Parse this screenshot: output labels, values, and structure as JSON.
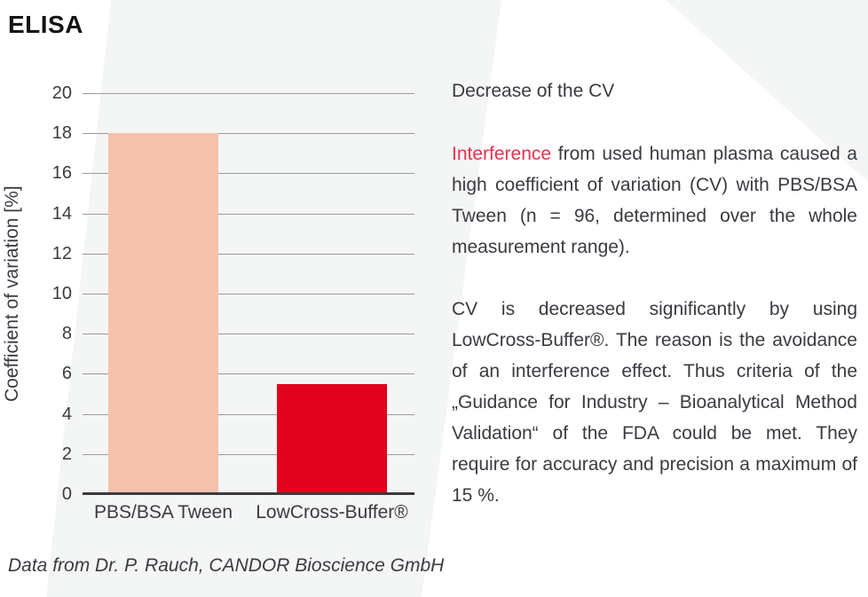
{
  "title": "ELISA",
  "chart_data": {
    "type": "bar",
    "categories": [
      "PBS/BSA Tween",
      "LowCross-Buffer®"
    ],
    "values": [
      18,
      5.5
    ],
    "bar_colors": [
      "#f6c1ab",
      "#e1001e"
    ],
    "title": "",
    "xlabel": "",
    "ylabel": "Coefficient of variation [%]",
    "ylim": [
      0,
      20
    ],
    "yticks": [
      0,
      2,
      4,
      6,
      8,
      10,
      12,
      14,
      16,
      18,
      20
    ],
    "grid": true,
    "legend": "none"
  },
  "text_panel": {
    "heading": "Decrease of the CV",
    "para1_highlight": "Interference",
    "para1_rest": " from used human plasma caused a high coefficient of variation (CV) with PBS/BSA Tween (n = 96, determined over the whole measurement range).",
    "para2": "CV is decreased significantly by using LowCross-Buffer®. The reason is the avoidance of an interference effect. Thus criteria of the „Guidance for Industry – Bioanalytical Method Validation“ of the FDA could be met. They require for accuracy and precision a maximum of 15 %."
  },
  "caption": "Data from Dr. P. Rauch, CANDOR Bioscience GmbH",
  "colors": {
    "accent_red": "#e1001e",
    "salmon": "#f6c1ab",
    "highlight_red": "#e8304c",
    "gridline": "#9b9b9b",
    "axis": "#3a3a3a",
    "background_band": "#f4f5f5",
    "text": "#3a3b42"
  }
}
